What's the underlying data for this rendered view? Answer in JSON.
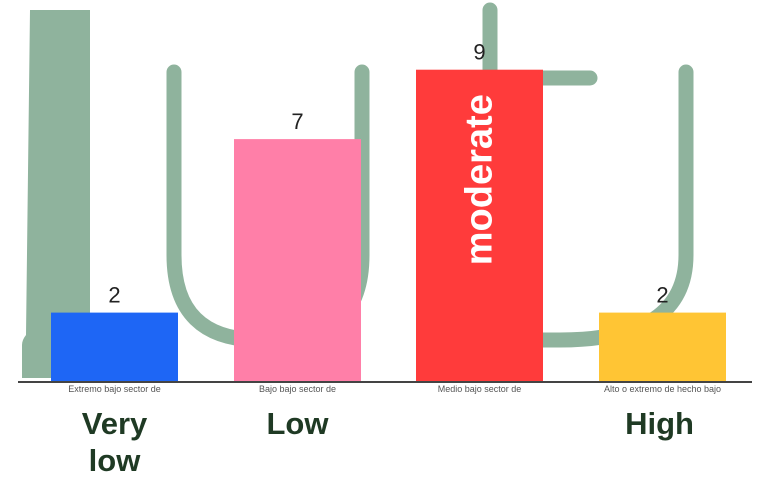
{
  "chart_data": {
    "type": "bar",
    "categories": [
      "Extremo bajo sector de",
      "Bajo bajo sector de",
      "Medio bajo sector de",
      "Alto o extremo de hecho bajo"
    ],
    "values": [
      2,
      7,
      9,
      2
    ],
    "value_labels": [
      "2",
      "7",
      "9",
      "2"
    ],
    "category_labels": [
      "Very\nlow",
      "Low",
      "",
      "High"
    ],
    "inside_labels": [
      "",
      "",
      "moderate",
      ""
    ],
    "bar_colors": [
      "#1e66f5",
      "#ff7fa8",
      "#ff3b3b",
      "#ffc534"
    ],
    "ylim": [
      0,
      10
    ],
    "grid": false,
    "title": "",
    "xlabel": "",
    "ylabel": ""
  },
  "colors": {
    "background_shapes": "#8fb39d",
    "axis": "#444444",
    "big_label": "#1f3a24"
  }
}
